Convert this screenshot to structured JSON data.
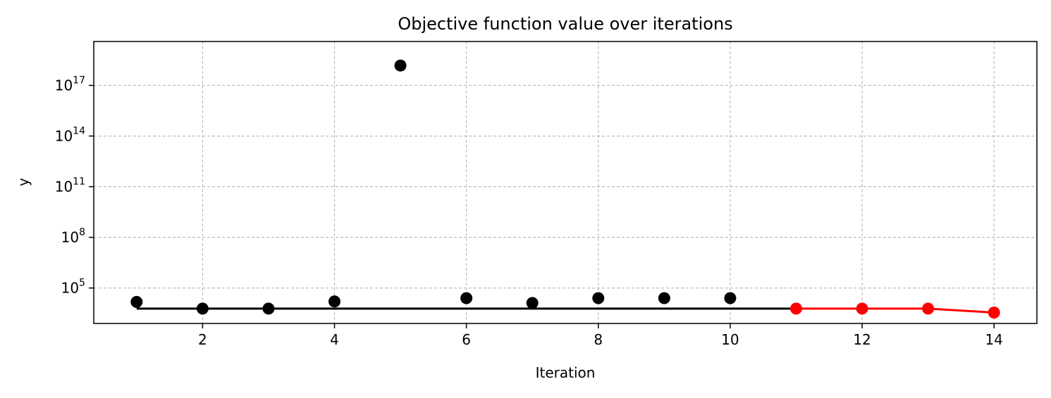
{
  "chart_data": {
    "type": "scatter",
    "title": "Objective function value over iterations",
    "xlabel": "Iteration",
    "ylabel": "y",
    "yscale": "log",
    "xlim": [
      0.35,
      14.65
    ],
    "ylim_exponent": [
      2.9,
      19.6
    ],
    "grid": true,
    "x_ticks": [
      {
        "value": 2,
        "label": "2"
      },
      {
        "value": 4,
        "label": "4"
      },
      {
        "value": 6,
        "label": "6"
      },
      {
        "value": 8,
        "label": "8"
      },
      {
        "value": 10,
        "label": "10"
      },
      {
        "value": 12,
        "label": "12"
      },
      {
        "value": 14,
        "label": "14"
      }
    ],
    "y_ticks": [
      {
        "exponent": 5,
        "base": "10",
        "exp_label": "5"
      },
      {
        "exponent": 8,
        "base": "10",
        "exp_label": "8"
      },
      {
        "exponent": 11,
        "base": "10",
        "exp_label": "11"
      },
      {
        "exponent": 14,
        "base": "10",
        "exp_label": "14"
      },
      {
        "exponent": 17,
        "base": "10",
        "exp_label": "17"
      }
    ],
    "points": [
      {
        "x": 1,
        "y": 15000,
        "color": "#000000"
      },
      {
        "x": 2,
        "y": 6000,
        "color": "#000000"
      },
      {
        "x": 3,
        "y": 6000,
        "color": "#000000"
      },
      {
        "x": 4,
        "y": 16000,
        "color": "#000000"
      },
      {
        "x": 5,
        "y": 1.5e+18,
        "color": "#000000"
      },
      {
        "x": 6,
        "y": 25000,
        "color": "#000000"
      },
      {
        "x": 7,
        "y": 13000,
        "color": "#000000"
      },
      {
        "x": 8,
        "y": 25000,
        "color": "#000000"
      },
      {
        "x": 9,
        "y": 25000,
        "color": "#000000"
      },
      {
        "x": 10,
        "y": 25000,
        "color": "#000000"
      },
      {
        "x": 11,
        "y": 6000,
        "color": "#ff0000"
      },
      {
        "x": 12,
        "y": 6000,
        "color": "#ff0000"
      },
      {
        "x": 13,
        "y": 6000,
        "color": "#ff0000"
      },
      {
        "x": 14,
        "y": 3500,
        "color": "#ff0000"
      }
    ],
    "best_line": {
      "color": "#000000",
      "x": [
        1,
        11
      ],
      "y": [
        6000,
        6000
      ]
    },
    "recent_line": {
      "color": "#ff0000",
      "x": [
        11,
        12,
        13,
        14
      ],
      "y": [
        6000,
        6000,
        6000,
        3500
      ]
    }
  }
}
